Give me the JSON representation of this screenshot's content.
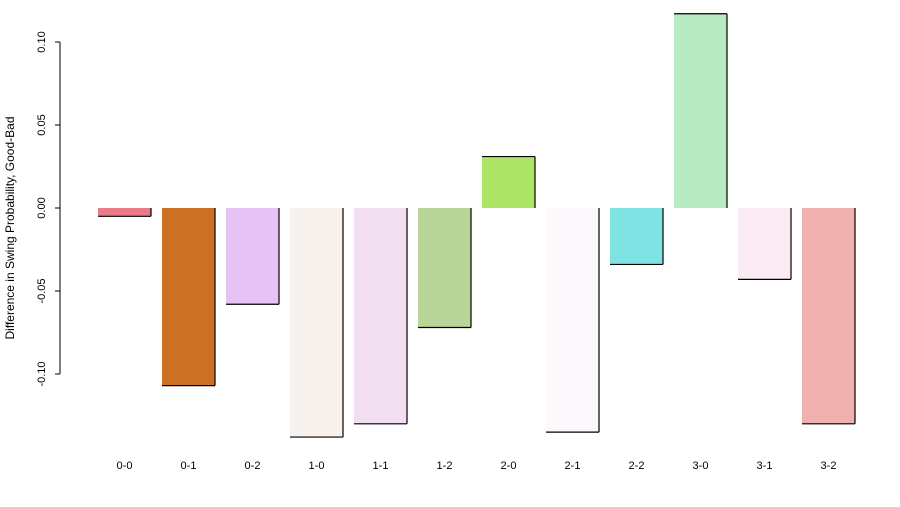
{
  "chart_data": {
    "type": "bar",
    "title": "",
    "xlabel": "",
    "ylabel": "Difference in Swing Probability, Good-Bad",
    "categories": [
      "0-0",
      "0-1",
      "0-2",
      "1-0",
      "1-1",
      "1-2",
      "2-0",
      "2-1",
      "2-2",
      "3-0",
      "3-1",
      "3-2"
    ],
    "values": [
      -0.005,
      -0.107,
      -0.058,
      -0.138,
      -0.13,
      -0.072,
      0.031,
      -0.135,
      -0.034,
      0.117,
      -0.043,
      -0.13
    ],
    "colors": [
      "#e87b85",
      "#cc7023",
      "#e5c4f5",
      "#f8f2ee",
      "#f2e0f2",
      "#b8d698",
      "#ade567",
      "#fdf8fc",
      "#7ee3e2",
      "#b8ebc1",
      "#fbebf5",
      "#eeb1ae"
    ],
    "yticks": [
      -0.1,
      -0.05,
      0.0,
      0.05,
      0.1
    ],
    "ytick_labels": [
      "-0.10",
      "-0.05",
      "0.00",
      "0.05",
      "0.10"
    ],
    "ylim": [
      -0.14,
      0.12
    ],
    "grid": false,
    "legend": "none"
  }
}
